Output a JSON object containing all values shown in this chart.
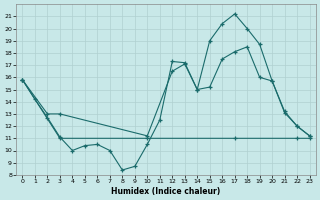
{
  "xlabel": "Humidex (Indice chaleur)",
  "bg_color": "#c8e8e8",
  "line_color": "#1a6b6b",
  "grid_color": "#b0d0d0",
  "xlim": [
    -0.5,
    23.5
  ],
  "ylim": [
    8,
    22
  ],
  "yticks": [
    8,
    9,
    10,
    11,
    12,
    13,
    14,
    15,
    16,
    17,
    18,
    19,
    20,
    21
  ],
  "xticks": [
    0,
    1,
    2,
    3,
    4,
    5,
    6,
    7,
    8,
    9,
    10,
    11,
    12,
    13,
    14,
    15,
    16,
    17,
    18,
    19,
    20,
    21,
    22,
    23
  ],
  "line1_x": [
    0,
    1,
    2,
    3,
    4,
    5,
    6,
    7,
    8,
    9,
    10,
    11,
    12,
    13,
    14,
    15,
    16,
    17,
    18,
    19,
    20,
    21,
    22,
    23
  ],
  "line1_y": [
    15.8,
    14.2,
    12.7,
    11.1,
    10.0,
    10.4,
    10.5,
    10.0,
    8.4,
    8.7,
    10.5,
    12.5,
    17.3,
    17.2,
    15.0,
    19.0,
    20.4,
    21.2,
    20.0,
    18.7,
    15.7,
    13.1,
    12.0,
    11.2
  ],
  "line2_x": [
    0,
    2,
    3,
    10,
    12,
    13,
    14,
    15,
    16,
    17,
    18,
    19,
    20,
    21,
    22,
    23
  ],
  "line2_y": [
    15.8,
    13.0,
    13.0,
    11.2,
    16.5,
    17.1,
    15.0,
    15.2,
    17.5,
    18.1,
    18.5,
    16.0,
    15.7,
    13.2,
    12.0,
    11.2
  ],
  "line3_x": [
    0,
    3,
    10,
    17,
    22,
    23
  ],
  "line3_y": [
    15.8,
    11.0,
    11.0,
    11.0,
    11.0,
    11.0
  ]
}
